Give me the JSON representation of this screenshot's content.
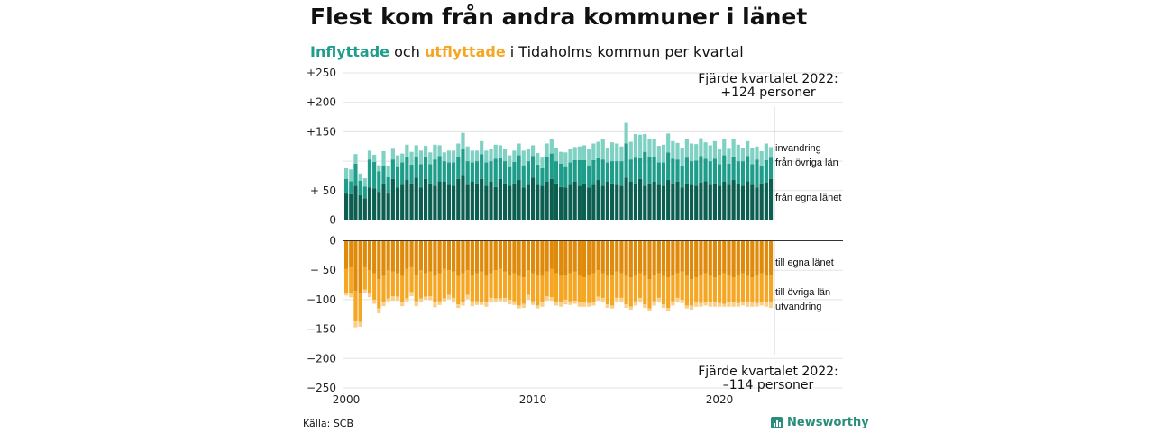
{
  "title": "Flest kom från andra kommuner i länet",
  "subtitle": {
    "part1": "Inflyttade",
    "part2": " och ",
    "part3": "utflyttade",
    "part4": " i Tidaholms kommun per kvartal"
  },
  "source": "Källa: SCB",
  "brand": "Newsworthy",
  "colors": {
    "in_own": "#0b5e50",
    "in_other": "#1f9d8b",
    "in_intl": "#7fd1c4",
    "out_own": "#e08a0b",
    "out_other": "#f5a623",
    "out_intl": "#f9d08a",
    "grid": "#e3e3e3",
    "axis": "#333333"
  },
  "annotations": {
    "top_line1": "Fjärde kvartalet 2022:",
    "top_line2": "+124 personer",
    "bottom_line1": "Fjärde kvartalet 2022:",
    "bottom_line2": "–114 personer"
  },
  "chart_data": {
    "type": "bar",
    "stacked": true,
    "x_label_ticks": [
      "2000",
      "2010",
      "2020"
    ],
    "upper": {
      "y_ticks": [
        "+250",
        "+200",
        "+150",
        "+ 50",
        "0"
      ],
      "ylim": [
        0,
        250
      ],
      "series": [
        {
          "name": "från egna länet",
          "values": [
            45,
            44,
            58,
            42,
            37,
            55,
            54,
            48,
            62,
            45,
            70,
            55,
            60,
            68,
            62,
            72,
            55,
            70,
            62,
            58,
            66,
            65,
            60,
            58,
            70,
            75,
            60,
            65,
            62,
            70,
            58,
            65,
            56,
            70,
            62,
            58,
            62,
            68,
            55,
            60,
            72,
            60,
            58,
            65,
            70,
            62,
            56,
            55,
            60,
            65,
            58,
            62,
            55,
            60,
            68,
            58,
            65,
            62,
            60,
            58,
            72,
            65,
            62,
            70,
            58,
            62,
            65,
            60,
            58,
            68,
            62,
            65,
            55,
            62,
            60,
            58,
            64,
            66,
            60,
            62,
            58,
            65,
            60,
            68,
            62,
            58,
            66,
            60,
            55,
            62,
            64,
            70
          ]
        },
        {
          "name": "från övriga län",
          "values": [
            25,
            22,
            38,
            25,
            20,
            48,
            45,
            35,
            30,
            28,
            33,
            35,
            38,
            40,
            32,
            35,
            40,
            38,
            33,
            45,
            43,
            35,
            38,
            40,
            37,
            45,
            40,
            33,
            38,
            42,
            40,
            35,
            48,
            35,
            38,
            32,
            37,
            42,
            38,
            40,
            37,
            34,
            30,
            42,
            43,
            38,
            40,
            35,
            38,
            37,
            44,
            40,
            38,
            42,
            37,
            45,
            33,
            38,
            40,
            42,
            58,
            38,
            44,
            35,
            58,
            45,
            42,
            38,
            40,
            47,
            42,
            38,
            37,
            44,
            40,
            43,
            45,
            38,
            40,
            42,
            37,
            45,
            36,
            40,
            38,
            42,
            43,
            35,
            48,
            30,
            38,
            36
          ]
        },
        {
          "name": "invandring",
          "values": [
            18,
            20,
            16,
            12,
            14,
            15,
            12,
            10,
            25,
            18,
            18,
            20,
            15,
            20,
            22,
            20,
            23,
            18,
            20,
            25,
            18,
            15,
            20,
            20,
            23,
            28,
            25,
            20,
            18,
            22,
            20,
            20,
            24,
            22,
            20,
            20,
            19,
            20,
            25,
            20,
            18,
            20,
            18,
            23,
            24,
            22,
            20,
            25,
            22,
            22,
            23,
            25,
            27,
            28,
            28,
            35,
            25,
            32,
            30,
            25,
            35,
            30,
            40,
            40,
            30,
            30,
            30,
            28,
            30,
            32,
            30,
            28,
            30,
            32,
            30,
            28,
            30,
            28,
            27,
            30,
            25,
            28,
            25,
            30,
            28,
            23,
            25,
            28,
            22,
            25,
            28,
            18
          ]
        }
      ]
    },
    "lower": {
      "y_ticks": [
        "0",
        "− 50",
        "−100",
        "−150",
        "−200",
        "−250"
      ],
      "ylim": [
        -250,
        0
      ],
      "series": [
        {
          "name": "till egna länet",
          "values": [
            -48,
            -45,
            -85,
            -90,
            -45,
            -50,
            -55,
            -65,
            -60,
            -50,
            -52,
            -55,
            -60,
            -48,
            -45,
            -58,
            -50,
            -55,
            -52,
            -60,
            -55,
            -48,
            -50,
            -52,
            -60,
            -55,
            -50,
            -58,
            -55,
            -52,
            -60,
            -55,
            -50,
            -48,
            -52,
            -58,
            -55,
            -60,
            -62,
            -50,
            -55,
            -58,
            -60,
            -52,
            -48,
            -55,
            -60,
            -58,
            -55,
            -52,
            -60,
            -62,
            -58,
            -55,
            -50,
            -55,
            -60,
            -58,
            -52,
            -55,
            -60,
            -62,
            -58,
            -55,
            -60,
            -65,
            -58,
            -55,
            -60,
            -62,
            -58,
            -55,
            -52,
            -60,
            -65,
            -62,
            -58,
            -55,
            -60,
            -62,
            -58,
            -55,
            -60,
            -62,
            -58,
            -55,
            -60,
            -62,
            -58,
            -55,
            -60,
            -58
          ]
        },
        {
          "name": "till övriga län",
          "values": [
            -40,
            -45,
            -52,
            -48,
            -38,
            -40,
            -45,
            -50,
            -45,
            -48,
            -42,
            -40,
            -45,
            -50,
            -42,
            -45,
            -48,
            -40,
            -42,
            -45,
            -48,
            -50,
            -42,
            -45,
            -48,
            -50,
            -42,
            -45,
            -48,
            -52,
            -45,
            -42,
            -48,
            -50,
            -45,
            -42,
            -48,
            -50,
            -45,
            -42,
            -48,
            -52,
            -45,
            -42,
            -48,
            -50,
            -45,
            -42,
            -48,
            -50,
            -45,
            -42,
            -48,
            -50,
            -45,
            -42,
            -48,
            -52,
            -45,
            -42,
            -48,
            -50,
            -45,
            -42,
            -48,
            -50,
            -45,
            -42,
            -48,
            -52,
            -45,
            -42,
            -48,
            -50,
            -45,
            -42,
            -48,
            -50,
            -45,
            -42,
            -48,
            -52,
            -45,
            -42,
            -48,
            -50,
            -45,
            -42,
            -48,
            -50,
            -45,
            -46
          ]
        },
        {
          "name": "utvandring",
          "values": [
            -5,
            -6,
            -10,
            -8,
            -5,
            -6,
            -7,
            -8,
            -6,
            -5,
            -8,
            -7,
            -6,
            -5,
            -7,
            -8,
            -6,
            -5,
            -7,
            -8,
            -6,
            -5,
            -7,
            -8,
            -6,
            -5,
            -7,
            -8,
            -6,
            -5,
            -7,
            -8,
            -6,
            -5,
            -7,
            -8,
            -6,
            -5,
            -7,
            -8,
            -6,
            -5,
            -7,
            -8,
            -6,
            -5,
            -7,
            -8,
            -6,
            -5,
            -7,
            -8,
            -6,
            -5,
            -7,
            -8,
            -6,
            -5,
            -7,
            -8,
            -6,
            -5,
            -7,
            -8,
            -6,
            -5,
            -7,
            -8,
            -6,
            -5,
            -7,
            -8,
            -6,
            -5,
            -7,
            -8,
            -6,
            -5,
            -7,
            -8,
            -6,
            -5,
            -7,
            -8,
            -6,
            -5,
            -7,
            -8,
            -6,
            -5,
            -7,
            -10
          ]
        }
      ]
    },
    "last_quarter": "Fjärde kvartalet 2022",
    "last_quarter_in": 124,
    "last_quarter_out": -114
  }
}
